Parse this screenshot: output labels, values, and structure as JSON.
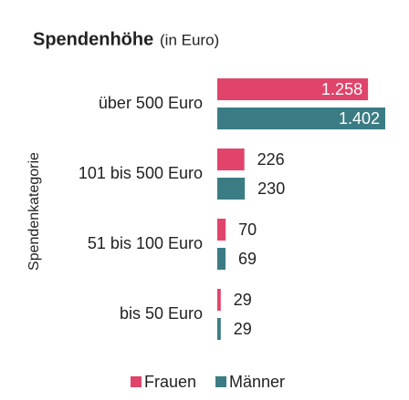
{
  "chart_data": {
    "type": "bar",
    "orientation": "horizontal",
    "title": "Spendenhöhe",
    "subtitle": "(in Euro)",
    "y_label": "Spendenkategorie",
    "categories": [
      "über 500 Euro",
      "101 bis 500 Euro",
      "51 bis 100 Euro",
      "bis 50 Euro"
    ],
    "series": [
      {
        "name": "Frauen",
        "color": "#e0446b",
        "values": [
          1258,
          226,
          70,
          29
        ],
        "value_labels": [
          "1.258",
          "226",
          "70",
          "29"
        ]
      },
      {
        "name": "Männer",
        "color": "#3b7c84",
        "values": [
          1402,
          230,
          69,
          29
        ],
        "value_labels": [
          "1.402",
          "230",
          "69",
          "29"
        ]
      }
    ]
  }
}
